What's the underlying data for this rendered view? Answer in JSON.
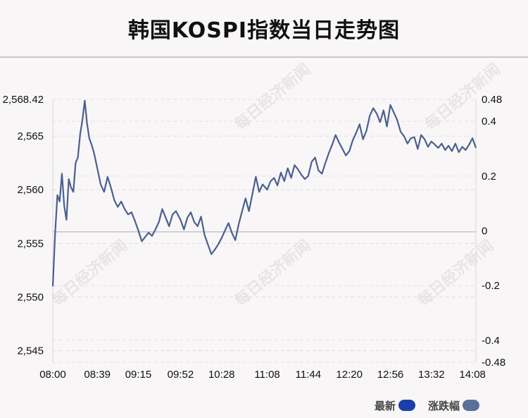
{
  "title": "韩国KOSPI指数当日走势图",
  "watermark": "每日经济新闻",
  "legend": [
    {
      "label": "最新",
      "color": "#1a3fa8"
    },
    {
      "label": "涨跌幅",
      "color": "#5b6f9a"
    }
  ],
  "chart_data": {
    "type": "line",
    "title": "韩国KOSPI指数当日走势图",
    "line_color": "#4a6090",
    "reference_value": 2556.08,
    "y_left": {
      "ticks": [
        2568.42,
        2565,
        2560,
        2555,
        2550,
        2545
      ],
      "tick_labels": [
        "2,568.42",
        "2,565",
        "2,560",
        "2,555",
        "2,550",
        "2,545"
      ],
      "range": [
        2543.92,
        2568.42
      ]
    },
    "y_right": {
      "ticks": [
        0.48,
        0.4,
        0.2,
        0,
        -0.2,
        -0.4,
        -0.48
      ],
      "tick_labels": [
        "0.48",
        "0.4",
        "0.2",
        "0",
        "-0.2",
        "-0.4",
        "-0.48"
      ],
      "range": [
        -0.48,
        0.48
      ]
    },
    "x_ticks": [
      "08:00",
      "08:39",
      "09:15",
      "09:52",
      "10:28",
      "11:08",
      "11:44",
      "12:20",
      "12:56",
      "13:32",
      "14:08"
    ],
    "grid": "horizontal-dashed",
    "series": [
      {
        "x": [
          "08:00",
          "08:02",
          "08:04",
          "08:06",
          "08:08",
          "08:10",
          "08:12",
          "08:14",
          "08:16",
          "08:18",
          "08:20",
          "08:22",
          "08:24",
          "08:26",
          "08:28",
          "08:30",
          "08:32",
          "08:34",
          "08:36",
          "08:39",
          "08:42",
          "08:45",
          "08:48",
          "08:51",
          "08:54",
          "08:57",
          "09:00",
          "09:03",
          "09:06",
          "09:09",
          "09:12",
          "09:15",
          "09:18",
          "09:21",
          "09:24",
          "09:27",
          "09:30",
          "09:33",
          "09:36",
          "09:39",
          "09:42",
          "09:45",
          "09:48",
          "09:52",
          "09:55",
          "09:58",
          "10:01",
          "10:04",
          "10:07",
          "10:10",
          "10:13",
          "10:16",
          "10:19",
          "10:22",
          "10:25",
          "10:28",
          "10:31",
          "10:34",
          "10:37",
          "10:40",
          "10:43",
          "10:46",
          "10:49",
          "10:52",
          "10:55",
          "10:58",
          "11:01",
          "11:04",
          "11:08",
          "11:11",
          "11:14",
          "11:17",
          "11:20",
          "11:23",
          "11:26",
          "11:29",
          "11:32",
          "11:35",
          "11:38",
          "11:41",
          "11:44",
          "11:47",
          "11:50",
          "11:53",
          "11:56",
          "11:59",
          "12:02",
          "12:05",
          "12:08",
          "12:11",
          "12:14",
          "12:17",
          "12:20",
          "12:23",
          "12:26",
          "12:29",
          "12:32",
          "12:35",
          "12:38",
          "12:41",
          "12:44",
          "12:47",
          "12:50",
          "12:53",
          "12:56",
          "12:59",
          "13:02",
          "13:05",
          "13:08",
          "13:11",
          "13:14",
          "13:17",
          "13:20",
          "13:23",
          "13:26",
          "13:29",
          "13:32",
          "13:35",
          "13:38",
          "13:41",
          "13:44",
          "13:47",
          "13:50",
          "13:53",
          "13:56",
          "13:59",
          "14:02",
          "14:05",
          "14:08",
          "14:11"
        ],
        "values": [
          2551.0,
          2555.8,
          2559.5,
          2558.9,
          2561.5,
          2558.5,
          2557.2,
          2561.0,
          2560.2,
          2559.8,
          2562.5,
          2563.0,
          2565.2,
          2566.5,
          2568.3,
          2566.2,
          2564.8,
          2564.2,
          2563.5,
          2562.0,
          2560.5,
          2559.8,
          2561.2,
          2560.2,
          2559.0,
          2558.4,
          2558.9,
          2558.2,
          2557.7,
          2557.9,
          2557.1,
          2556.2,
          2555.2,
          2555.6,
          2556.0,
          2555.7,
          2556.3,
          2557.0,
          2558.2,
          2557.4,
          2556.6,
          2557.7,
          2558.0,
          2557.2,
          2556.3,
          2557.4,
          2557.9,
          2557.0,
          2556.6,
          2557.5,
          2555.8,
          2554.9,
          2554.0,
          2554.4,
          2554.9,
          2555.5,
          2556.2,
          2556.9,
          2556.0,
          2555.3,
          2556.8,
          2558.0,
          2559.2,
          2558.0,
          2559.6,
          2561.2,
          2559.8,
          2560.5,
          2560.0,
          2560.8,
          2561.1,
          2560.4,
          2561.6,
          2560.8,
          2562.0,
          2561.1,
          2562.3,
          2561.9,
          2561.4,
          2561.0,
          2561.3,
          2562.6,
          2563.0,
          2561.8,
          2561.5,
          2562.5,
          2563.4,
          2564.2,
          2565.1,
          2564.4,
          2563.8,
          2563.2,
          2563.6,
          2564.6,
          2565.3,
          2566.1,
          2564.7,
          2565.5,
          2566.9,
          2567.6,
          2567.1,
          2566.3,
          2567.4,
          2565.9,
          2567.9,
          2567.2,
          2566.5,
          2565.4,
          2565.0,
          2564.3,
          2564.8,
          2564.9,
          2563.8,
          2565.1,
          2564.7,
          2564.0,
          2564.5,
          2564.2,
          2563.9,
          2564.3,
          2563.7,
          2564.1,
          2563.6,
          2564.3,
          2563.5,
          2564.0,
          2563.7,
          2564.2,
          2564.8,
          2563.9
        ]
      }
    ]
  }
}
